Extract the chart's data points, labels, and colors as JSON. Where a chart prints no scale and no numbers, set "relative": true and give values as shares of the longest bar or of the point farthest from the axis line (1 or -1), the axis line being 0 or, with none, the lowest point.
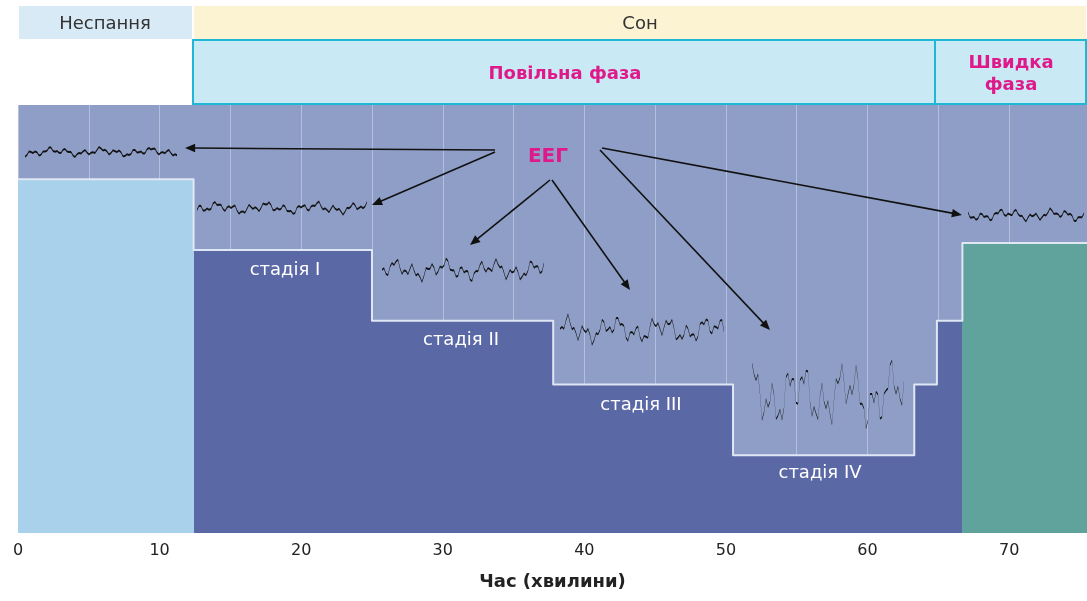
{
  "chart_data": {
    "type": "area",
    "relative": true,
    "xlabel": "Час (хвилини)",
    "x": [
      0,
      12.4,
      12.4,
      25,
      25,
      37.8,
      37.8,
      50.5,
      50.5,
      63.3,
      63.3,
      64.9,
      64.9,
      66.7,
      66.7,
      75.5
    ],
    "values": [
      1,
      1,
      0.8,
      0.8,
      0.6,
      0.6,
      0.42,
      0.42,
      0.22,
      0.22,
      0.42,
      0.42,
      0.6,
      0.6,
      0.82,
      0.82
    ],
    "colors": [
      "#a9d1ec",
      "#a9d1ec",
      "#5b68a6",
      "#5b68a6",
      "#5b68a6",
      "#5b68a6",
      "#5b68a6",
      "#5b68a6",
      "#5b68a6",
      "#5b68a6",
      "#5b68a6",
      "#5b68a6",
      "#5b68a6",
      "#5b68a6",
      "#5fa39c",
      "#5fa39c"
    ],
    "xlim": [
      0,
      75.5
    ],
    "xticks": [
      0,
      {
        "value": 5,
        "label": null
      },
      10,
      {
        "value": 15,
        "label": null
      },
      20,
      {
        "value": 25,
        "label": null
      },
      30,
      {
        "value": 35,
        "label": null
      },
      40,
      {
        "value": 45,
        "label": null
      },
      50,
      {
        "value": 55,
        "label": null
      },
      60,
      {
        "value": 65,
        "label": null
      },
      70
    ],
    "grid": "x",
    "annotations": [
      "Неспання",
      "Сон",
      "Повільна фаза",
      "Швидка фаза",
      "ЕЕГ",
      "стадія I",
      "стадія II",
      "стадія III",
      "стадія IV"
    ]
  }
}
